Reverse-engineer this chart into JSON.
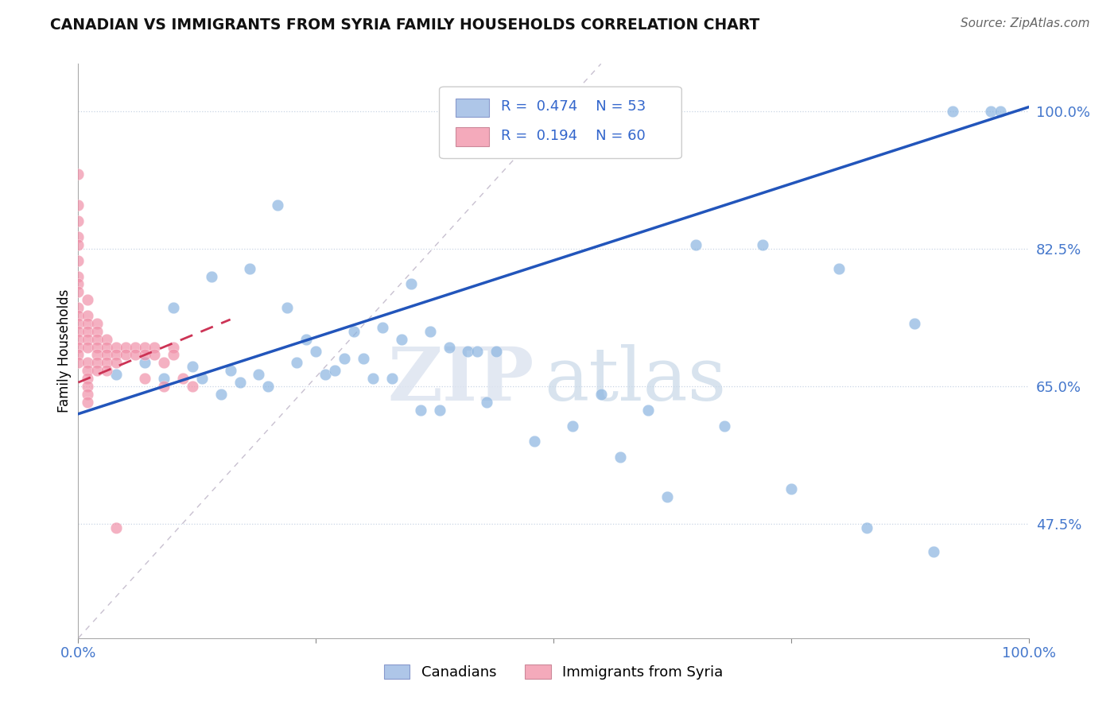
{
  "title": "CANADIAN VS IMMIGRANTS FROM SYRIA FAMILY HOUSEHOLDS CORRELATION CHART",
  "source": "Source: ZipAtlas.com",
  "ylabel": "Family Households",
  "xlabel": "",
  "y_tick_labels": [
    "47.5%",
    "65.0%",
    "82.5%",
    "100.0%"
  ],
  "y_tick_values": [
    0.475,
    0.65,
    0.825,
    1.0
  ],
  "x_lim": [
    0.0,
    1.0
  ],
  "y_lim": [
    0.33,
    1.06
  ],
  "blue_R": 0.474,
  "blue_N": 53,
  "pink_R": 0.194,
  "pink_N": 60,
  "legend_color_blue": "#aec6e8",
  "legend_color_pink": "#f4aabb",
  "blue_color": "#8ab4e0",
  "pink_color": "#f090a8",
  "blue_line_color": "#2255bb",
  "pink_line_color": "#cc3355",
  "ref_line_color": "#c8c0d0",
  "grid_color": "#c8d4e4",
  "watermark_zip": "ZIP",
  "watermark_atlas": "atlas",
  "blue_line_x": [
    0.0,
    1.0
  ],
  "blue_line_y": [
    0.615,
    1.005
  ],
  "pink_line_x": [
    0.0,
    0.16
  ],
  "pink_line_y": [
    0.655,
    0.735
  ],
  "ref_line_x": [
    0.0,
    0.55
  ],
  "ref_line_y": [
    0.33,
    1.06
  ],
  "canadians_x": [
    0.04,
    0.07,
    0.09,
    0.12,
    0.13,
    0.15,
    0.16,
    0.17,
    0.19,
    0.2,
    0.21,
    0.22,
    0.23,
    0.24,
    0.25,
    0.26,
    0.27,
    0.28,
    0.29,
    0.3,
    0.31,
    0.32,
    0.33,
    0.34,
    0.35,
    0.37,
    0.39,
    0.41,
    0.42,
    0.44,
    0.36,
    0.55,
    0.6,
    0.65,
    0.72,
    0.8,
    0.88,
    0.92,
    0.96,
    0.1,
    0.14,
    0.18,
    0.38,
    0.43,
    0.48,
    0.52,
    0.57,
    0.62,
    0.68,
    0.75,
    0.83,
    0.9,
    0.97
  ],
  "canadians_y": [
    0.665,
    0.68,
    0.66,
    0.675,
    0.66,
    0.64,
    0.67,
    0.655,
    0.665,
    0.65,
    0.88,
    0.75,
    0.68,
    0.71,
    0.695,
    0.665,
    0.67,
    0.685,
    0.72,
    0.685,
    0.66,
    0.725,
    0.66,
    0.71,
    0.78,
    0.72,
    0.7,
    0.695,
    0.695,
    0.695,
    0.62,
    0.64,
    0.62,
    0.83,
    0.83,
    0.8,
    0.73,
    1.0,
    1.0,
    0.75,
    0.79,
    0.8,
    0.62,
    0.63,
    0.58,
    0.6,
    0.56,
    0.51,
    0.6,
    0.52,
    0.47,
    0.44,
    1.0
  ],
  "syria_x": [
    0.0,
    0.0,
    0.0,
    0.0,
    0.0,
    0.0,
    0.0,
    0.0,
    0.0,
    0.0,
    0.0,
    0.0,
    0.0,
    0.0,
    0.0,
    0.0,
    0.0,
    0.01,
    0.01,
    0.01,
    0.01,
    0.01,
    0.01,
    0.01,
    0.01,
    0.01,
    0.01,
    0.01,
    0.01,
    0.02,
    0.02,
    0.02,
    0.02,
    0.02,
    0.02,
    0.02,
    0.03,
    0.03,
    0.03,
    0.03,
    0.03,
    0.04,
    0.04,
    0.04,
    0.05,
    0.05,
    0.06,
    0.06,
    0.07,
    0.07,
    0.07,
    0.08,
    0.08,
    0.09,
    0.09,
    0.1,
    0.1,
    0.11,
    0.12,
    0.04
  ],
  "syria_y": [
    0.92,
    0.88,
    0.86,
    0.84,
    0.83,
    0.81,
    0.79,
    0.78,
    0.77,
    0.75,
    0.74,
    0.73,
    0.72,
    0.71,
    0.7,
    0.69,
    0.68,
    0.76,
    0.74,
    0.73,
    0.72,
    0.71,
    0.7,
    0.68,
    0.67,
    0.66,
    0.65,
    0.64,
    0.63,
    0.73,
    0.72,
    0.71,
    0.7,
    0.69,
    0.68,
    0.67,
    0.71,
    0.7,
    0.69,
    0.68,
    0.67,
    0.7,
    0.69,
    0.68,
    0.7,
    0.69,
    0.7,
    0.69,
    0.7,
    0.69,
    0.66,
    0.7,
    0.69,
    0.68,
    0.65,
    0.7,
    0.69,
    0.66,
    0.65,
    0.47
  ]
}
